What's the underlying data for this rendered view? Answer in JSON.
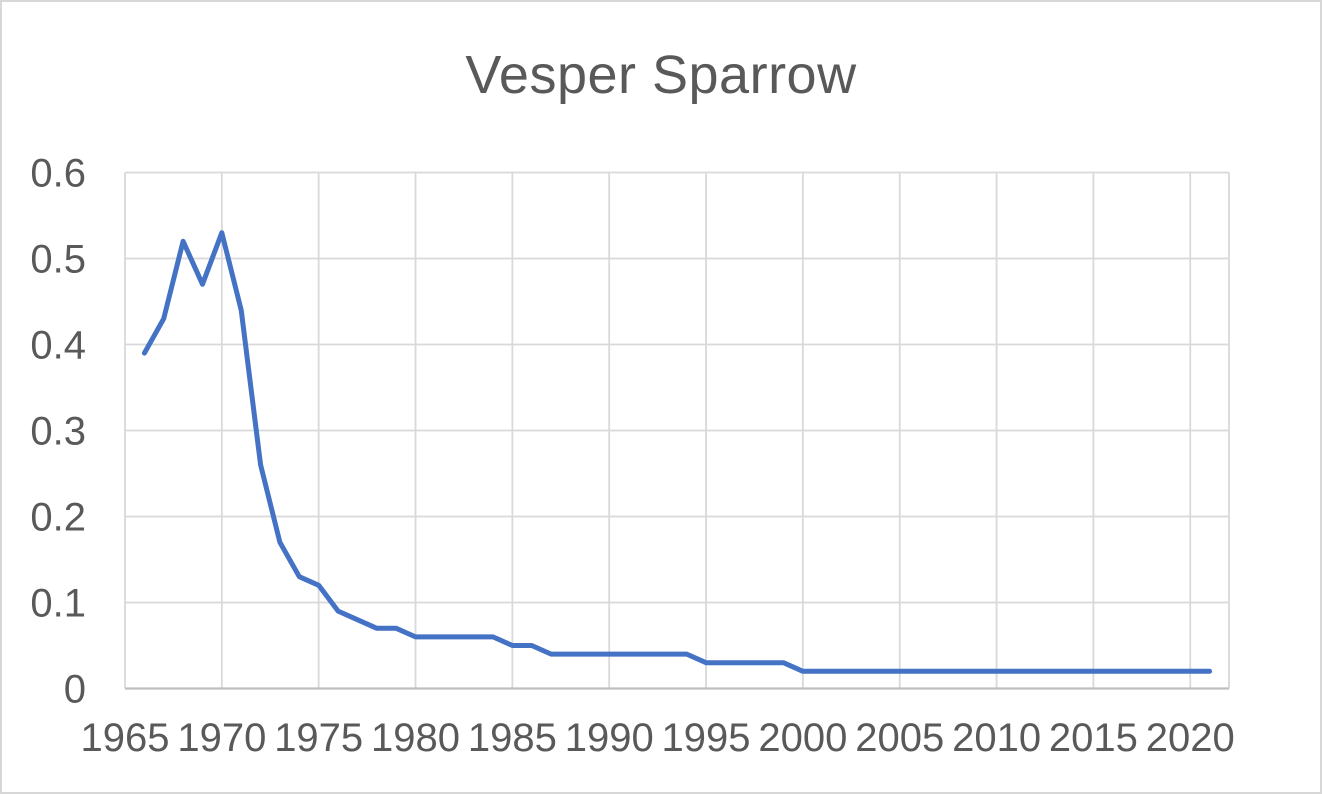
{
  "window": {
    "background_color": "#ffffff",
    "border_color": "#d7d7d7"
  },
  "chart_data": {
    "type": "line",
    "title": "Vesper Sparrow",
    "xlabel": "",
    "ylabel": "",
    "xlim": [
      1965,
      2022
    ],
    "ylim": [
      0,
      0.6
    ],
    "grid": true,
    "legend": "none",
    "x_ticks": [
      1965,
      1970,
      1975,
      1980,
      1985,
      1990,
      1995,
      2000,
      2005,
      2010,
      2015,
      2020
    ],
    "y_ticks": [
      0,
      0.1,
      0.2,
      0.3,
      0.4,
      0.5,
      0.6
    ],
    "y_tick_labels": [
      "0",
      "0.1",
      "0.2",
      "0.3",
      "0.4",
      "0.5",
      "0.6"
    ],
    "x": [
      1966,
      1967,
      1968,
      1969,
      1970,
      1971,
      1972,
      1973,
      1974,
      1975,
      1976,
      1977,
      1978,
      1979,
      1980,
      1981,
      1982,
      1983,
      1984,
      1985,
      1986,
      1987,
      1988,
      1989,
      1990,
      1991,
      1992,
      1993,
      1994,
      1995,
      1996,
      1997,
      1998,
      1999,
      2000,
      2001,
      2002,
      2003,
      2004,
      2005,
      2006,
      2007,
      2008,
      2009,
      2010,
      2011,
      2012,
      2013,
      2014,
      2015,
      2016,
      2017,
      2018,
      2019,
      2020,
      2021
    ],
    "values": [
      0.39,
      0.43,
      0.52,
      0.47,
      0.53,
      0.44,
      0.26,
      0.17,
      0.13,
      0.12,
      0.09,
      0.08,
      0.07,
      0.07,
      0.06,
      0.06,
      0.06,
      0.06,
      0.06,
      0.05,
      0.05,
      0.04,
      0.04,
      0.04,
      0.04,
      0.04,
      0.04,
      0.04,
      0.04,
      0.03,
      0.03,
      0.03,
      0.03,
      0.03,
      0.02,
      0.02,
      0.02,
      0.02,
      0.02,
      0.02,
      0.02,
      0.02,
      0.02,
      0.02,
      0.02,
      0.02,
      0.02,
      0.02,
      0.02,
      0.02,
      0.02,
      0.02,
      0.02,
      0.02,
      0.02,
      0.02
    ],
    "line_color": "#4472C4",
    "gridline_color": "#D9D9D9",
    "axis_line_color": "#BFBFBF",
    "tick_label_color": "#595959",
    "title_color": "#595959"
  }
}
